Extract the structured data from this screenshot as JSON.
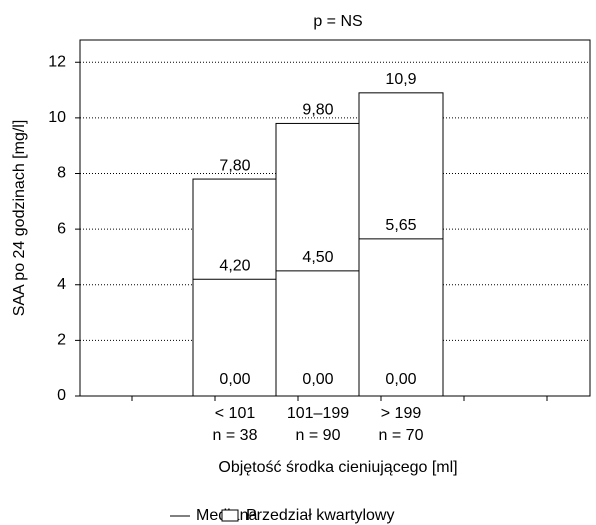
{
  "chart_data": {
    "type": "box",
    "title": "p = NS",
    "ylabel": "SAA po 24 godzinach [mg/l]",
    "xlabel": "Objętość środka cieniującego [ml]",
    "categories": [
      "< 101",
      "101–199",
      "> 199"
    ],
    "n_labels": [
      "n = 38",
      "n = 90",
      "n = 70"
    ],
    "q1": [
      0,
      0,
      0
    ],
    "q1_labels": [
      "0,00",
      "0,00",
      "0,00"
    ],
    "median": [
      4.2,
      4.5,
      5.65
    ],
    "median_labels": [
      "4,20",
      "4,50",
      "5,65"
    ],
    "q3": [
      7.8,
      9.8,
      10.9
    ],
    "q3_labels": [
      "7,80",
      "9,80",
      "10,9"
    ],
    "legend": {
      "median": "Mediana",
      "box": "Przedział kwartylowy"
    },
    "color": "#000000",
    "ylim": [
      0,
      12.8
    ],
    "yticks": [
      0,
      2,
      4,
      6,
      8,
      10,
      12
    ],
    "grid": true
  }
}
